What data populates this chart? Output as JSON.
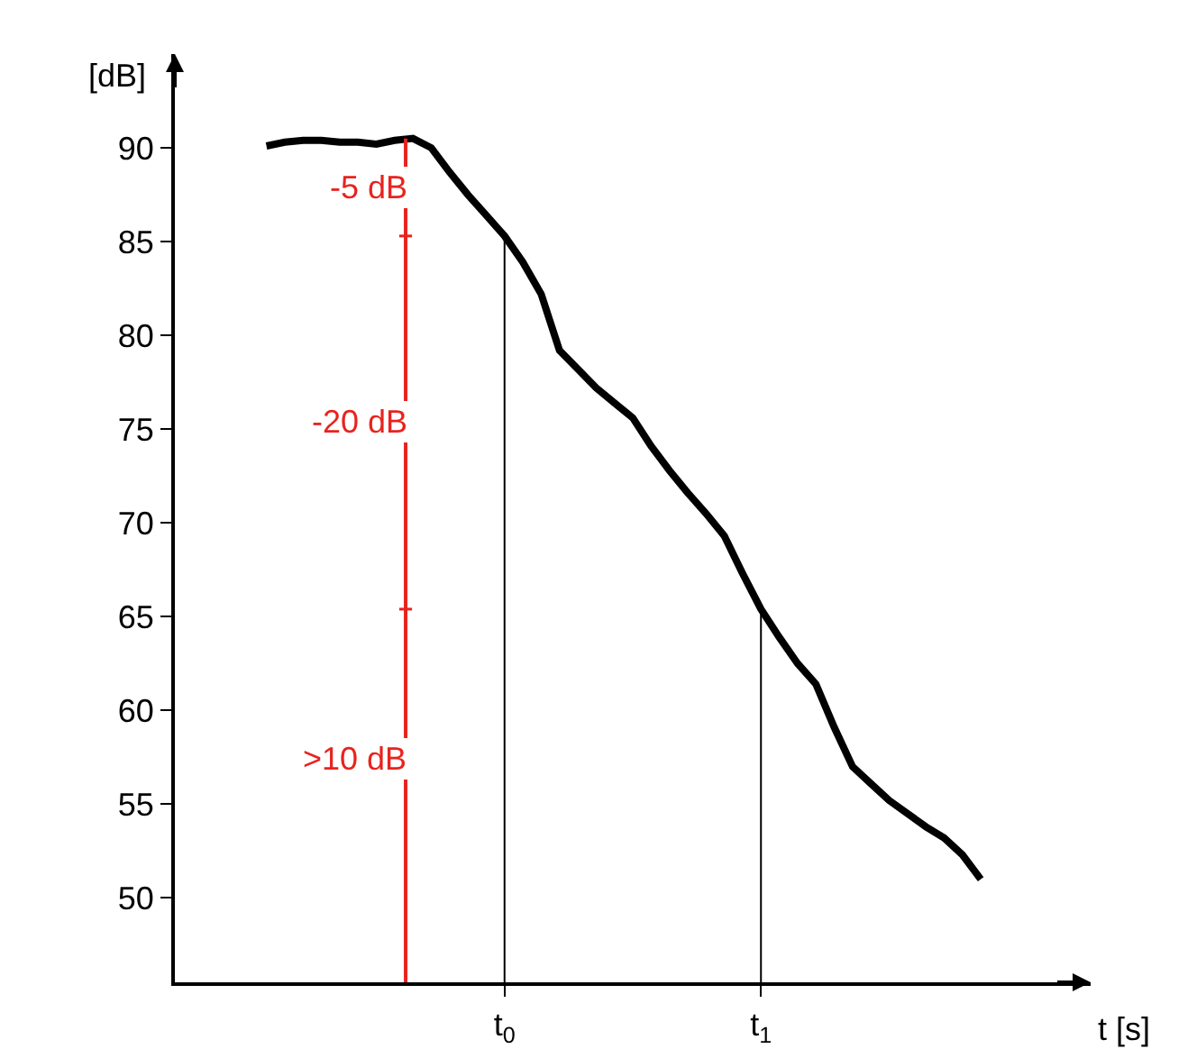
{
  "chart_data": {
    "type": "line",
    "xlabel": "t [s]",
    "ylabel": "[dB]",
    "categories": [
      null,
      null,
      null,
      null,
      null,
      null,
      null,
      null,
      null,
      null,
      null,
      null,
      null,
      null,
      null,
      null,
      null,
      null,
      "t$_{0}$",
      null,
      null,
      null,
      null,
      null,
      null,
      null,
      null,
      null,
      null,
      null,
      null,
      null,
      "t$_{1}$",
      null,
      null,
      null,
      null,
      null,
      null,
      null,
      null,
      null,
      null,
      null,
      null,
      null,
      null,
      null,
      null,
      null,
      null
    ],
    "series": [
      {
        "color": "#000000",
        "values": [
          null,
          null,
          null,
          null,
          null,
          90.1,
          90.3,
          90.4,
          90.4,
          90.3,
          90.3,
          90.2,
          90.4,
          90.5,
          90.0,
          88.7,
          87.5,
          86.4,
          85.3,
          83.9,
          82.2,
          79.2,
          78.2,
          77.2,
          76.4,
          75.6,
          74.1,
          72.8,
          71.6,
          70.5,
          69.3,
          67.3,
          65.4,
          63.9,
          62.5,
          61.4,
          59.1,
          57.0,
          56.1,
          55.2,
          54.5,
          53.8,
          53.2,
          52.3,
          51.0,
          null,
          null,
          null,
          null,
          null,
          null
        ]
      }
    ],
    "ylim": [
      45.5,
      95
    ],
    "yticks": [
      50,
      55,
      60,
      65,
      70,
      75,
      80,
      85,
      90
    ],
    "ref_lines": [
      {
        "axis": "x",
        "value": "t$_{0}$",
        "color": "#000000"
      },
      {
        "axis": "x",
        "value": "t$_{1}$",
        "color": "#000000"
      }
    ],
    "annotations": [
      "-5 dB",
      "-20 dB",
      ">10 dB"
    ],
    "grid": false,
    "marker": "none",
    "line_style": "solid"
  }
}
